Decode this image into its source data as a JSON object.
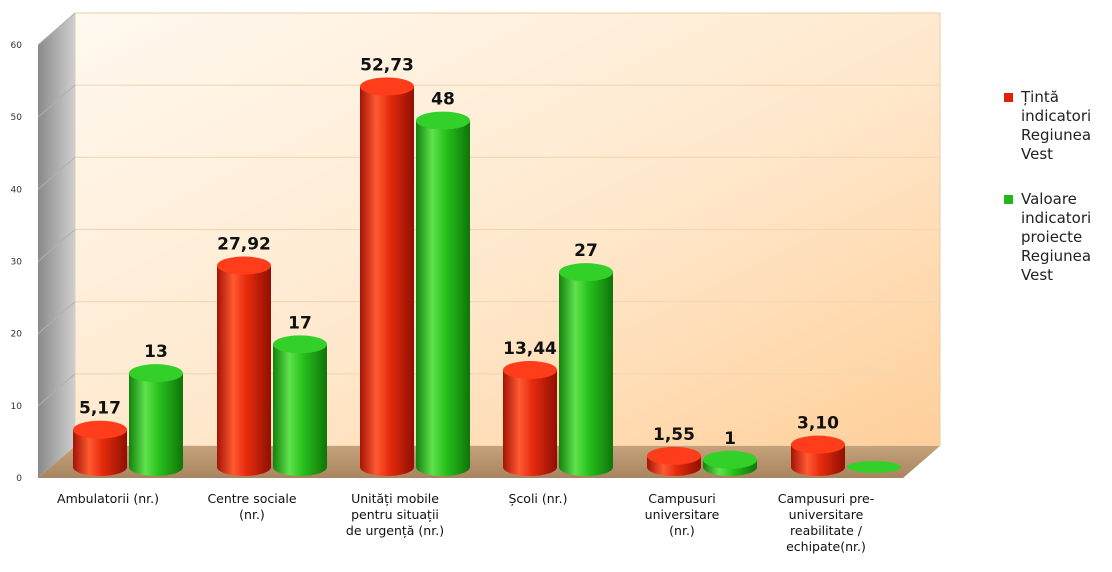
{
  "colors": {
    "target": "#e0200a",
    "actual": "#22b818"
  },
  "legend": [
    {
      "label": "Țintă indicatori Regiunea Vest",
      "color": "#e0200a"
    },
    {
      "label": "Valoare indicatori proiecte Regiunea Vest",
      "color": "#22b818"
    }
  ],
  "chart_data": {
    "type": "bar",
    "title": "",
    "xlabel": "",
    "ylabel": "",
    "ylim": [
      0,
      60
    ],
    "yticks": [
      0,
      10,
      20,
      30,
      40,
      50,
      60
    ],
    "grid": true,
    "legend_position": "right",
    "categories": [
      "Ambulatorii (nr.)",
      "Centre sociale (nr.)",
      "Unități mobile pentru situații de urgență (nr.)",
      "Școli (nr.)",
      "Campusuri universitare (nr.)",
      "Campusuri pre-universitare reabilitate / echipate(nr.)"
    ],
    "category_lines": [
      [
        "Ambulatorii (nr.)"
      ],
      [
        "Centre sociale",
        "(nr.)"
      ],
      [
        "Unități mobile",
        "pentru situații",
        "de urgență (nr.)"
      ],
      [
        "Școli (nr.)"
      ],
      [
        "Campusuri",
        "universitare",
        "(nr.)"
      ],
      [
        "Campusuri pre-",
        "universitare",
        "reabilitate /",
        "echipate(nr.)"
      ]
    ],
    "series": [
      {
        "name": "Țintă indicatori Regiunea Vest",
        "color": "#e0200a",
        "values": [
          5.17,
          27.92,
          52.73,
          13.44,
          1.55,
          3.1
        ],
        "labels": [
          "5,17",
          "27,92",
          "52,73",
          "13,44",
          "1,55",
          "3,10"
        ]
      },
      {
        "name": "Valoare indicatori proiecte Regiunea Vest",
        "color": "#22b818",
        "values": [
          13,
          17,
          48,
          27,
          1,
          0
        ],
        "labels": [
          "13",
          "17",
          "48",
          "27",
          "1",
          ""
        ]
      }
    ]
  }
}
